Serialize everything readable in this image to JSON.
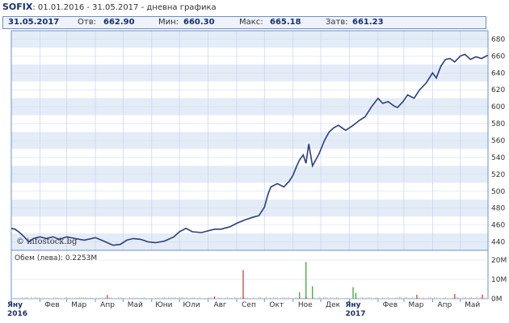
{
  "header": {
    "symbol": "SOFIX",
    "range": ": 01.01.2016 - 31.05.2017 - дневна графика"
  },
  "info": {
    "date": "31.05.2017",
    "open_label": "Отв:",
    "open": "662.90",
    "min_label": "Мин:",
    "min": "660.30",
    "max_label": "Макс:",
    "max": "665.18",
    "close_label": "Затв:",
    "close": "661.23"
  },
  "watermark": "© infostock.bg",
  "volume_label": "Обем (лева): 0.2253M",
  "colors": {
    "line": "#2b3f7a",
    "band": "#e4ecf8",
    "vol_up": "#2e9a2e",
    "vol_down": "#c0392b"
  },
  "chart_data": {
    "type": "line",
    "x_range": [
      "2016-01-01",
      "2017-05-31"
    ],
    "price_ticks": [
      440,
      460,
      480,
      500,
      520,
      540,
      560,
      580,
      600,
      620,
      640,
      660,
      680
    ],
    "price_ylim": [
      430,
      690
    ],
    "series": [
      {
        "values": [
          [
            "2016-01-01",
            456
          ],
          [
            "2016-01-05",
            455
          ],
          [
            "2016-01-10",
            451
          ],
          [
            "2016-01-15",
            446
          ],
          [
            "2016-01-20",
            440
          ],
          [
            "2016-01-25",
            444
          ],
          [
            "2016-02-01",
            446
          ],
          [
            "2016-02-08",
            444
          ],
          [
            "2016-02-15",
            446
          ],
          [
            "2016-02-22",
            443
          ],
          [
            "2016-03-01",
            446
          ],
          [
            "2016-03-10",
            444
          ],
          [
            "2016-03-20",
            442
          ],
          [
            "2016-04-01",
            445
          ],
          [
            "2016-04-10",
            441
          ],
          [
            "2016-04-20",
            436
          ],
          [
            "2016-04-28",
            437
          ],
          [
            "2016-05-05",
            442
          ],
          [
            "2016-05-12",
            444
          ],
          [
            "2016-05-20",
            443
          ],
          [
            "2016-05-28",
            440
          ],
          [
            "2016-06-05",
            439
          ],
          [
            "2016-06-15",
            441
          ],
          [
            "2016-06-25",
            446
          ],
          [
            "2016-07-01",
            452
          ],
          [
            "2016-07-08",
            456
          ],
          [
            "2016-07-15",
            452
          ],
          [
            "2016-07-25",
            451
          ],
          [
            "2016-08-01",
            453
          ],
          [
            "2016-08-08",
            455
          ],
          [
            "2016-08-15",
            455
          ],
          [
            "2016-08-25",
            458
          ],
          [
            "2016-09-01",
            462
          ],
          [
            "2016-09-10",
            466
          ],
          [
            "2016-09-18",
            469
          ],
          [
            "2016-09-25",
            471
          ],
          [
            "2016-10-01",
            481
          ],
          [
            "2016-10-05",
            497
          ],
          [
            "2016-10-08",
            505
          ],
          [
            "2016-10-15",
            509
          ],
          [
            "2016-10-22",
            505
          ],
          [
            "2016-10-28",
            512
          ],
          [
            "2016-11-01",
            519
          ],
          [
            "2016-11-05",
            530
          ],
          [
            "2016-11-08",
            537
          ],
          [
            "2016-11-12",
            543
          ],
          [
            "2016-11-15",
            533
          ],
          [
            "2016-11-18",
            556
          ],
          [
            "2016-11-22",
            530
          ],
          [
            "2016-11-25",
            536
          ],
          [
            "2016-11-29",
            544
          ],
          [
            "2016-12-05",
            560
          ],
          [
            "2016-12-10",
            570
          ],
          [
            "2016-12-15",
            575
          ],
          [
            "2016-12-20",
            578
          ],
          [
            "2016-12-28",
            572
          ],
          [
            "2017-01-05",
            578
          ],
          [
            "2017-01-12",
            584
          ],
          [
            "2017-01-18",
            588
          ],
          [
            "2017-01-25",
            600
          ],
          [
            "2017-02-01",
            610
          ],
          [
            "2017-02-06",
            604
          ],
          [
            "2017-02-12",
            606
          ],
          [
            "2017-02-18",
            601
          ],
          [
            "2017-02-22",
            599
          ],
          [
            "2017-02-28",
            606
          ],
          [
            "2017-03-05",
            614
          ],
          [
            "2017-03-12",
            610
          ],
          [
            "2017-03-18",
            620
          ],
          [
            "2017-03-25",
            628
          ],
          [
            "2017-04-01",
            640
          ],
          [
            "2017-04-05",
            634
          ],
          [
            "2017-04-10",
            648
          ],
          [
            "2017-04-15",
            656
          ],
          [
            "2017-04-20",
            657
          ],
          [
            "2017-04-25",
            653
          ],
          [
            "2017-05-01",
            660
          ],
          [
            "2017-05-06",
            662
          ],
          [
            "2017-05-12",
            656
          ],
          [
            "2017-05-18",
            659
          ],
          [
            "2017-05-24",
            657
          ],
          [
            "2017-05-31",
            661
          ]
        ]
      }
    ],
    "volume_ticks": [
      "20M",
      "10M",
      "0M"
    ],
    "volume_ylim": [
      0,
      20
    ],
    "volume_spikes": [
      [
        "2016-04-14",
        2.0,
        "down"
      ],
      [
        "2016-08-08",
        1.2,
        "down"
      ],
      [
        "2016-09-08",
        14.8,
        "down"
      ],
      [
        "2016-11-15",
        19.0,
        "up"
      ],
      [
        "2016-11-22",
        6.5,
        "up"
      ],
      [
        "2016-11-08",
        3.4,
        "up"
      ],
      [
        "2017-01-05",
        6.0,
        "up"
      ],
      [
        "2017-01-08",
        3.0,
        "up"
      ],
      [
        "2017-03-15",
        2.1,
        "down"
      ],
      [
        "2017-04-25",
        2.5,
        "down"
      ],
      [
        "2017-05-25",
        2.2,
        "down"
      ]
    ],
    "months": [
      {
        "date": "2016-01-01",
        "label": "Яну",
        "year": "2016"
      },
      {
        "date": "2016-02-01",
        "label": "Фев"
      },
      {
        "date": "2016-03-01",
        "label": "Мар"
      },
      {
        "date": "2016-04-01",
        "label": "Апр"
      },
      {
        "date": "2016-05-01",
        "label": "Май"
      },
      {
        "date": "2016-06-01",
        "label": "Юни"
      },
      {
        "date": "2016-07-01",
        "label": "Юли"
      },
      {
        "date": "2016-08-01",
        "label": "Авг"
      },
      {
        "date": "2016-09-01",
        "label": "Сеп"
      },
      {
        "date": "2016-10-01",
        "label": "Окт"
      },
      {
        "date": "2016-11-01",
        "label": "Ное"
      },
      {
        "date": "2016-12-01",
        "label": "Дек"
      },
      {
        "date": "2017-01-01",
        "label": "Яну",
        "year": "2017"
      },
      {
        "date": "2017-02-01",
        "label": "Фев"
      },
      {
        "date": "2017-03-01",
        "label": "Мар"
      },
      {
        "date": "2017-04-01",
        "label": "Апр"
      },
      {
        "date": "2017-05-01",
        "label": "Май"
      }
    ],
    "grid": true
  }
}
